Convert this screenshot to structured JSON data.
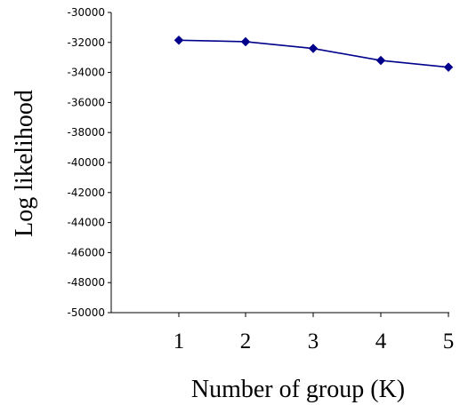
{
  "chart_data": {
    "type": "line",
    "title": "",
    "xlabel": "Number of group (K)",
    "ylabel": "Log likelihood",
    "x": [
      1,
      2,
      3,
      4,
      5
    ],
    "series": [
      {
        "values": [
          -31850,
          -31950,
          -32400,
          -33200,
          -33650
        ],
        "color": "#00008b"
      }
    ],
    "ylim": [
      -50000,
      -30000
    ],
    "yticks": [
      "-30000",
      "-32000",
      "-34000",
      "-36000",
      "-38000",
      "-40000",
      "-42000",
      "-44000",
      "-46000",
      "-48000",
      "-50000"
    ],
    "xticks": [
      "1",
      "2",
      "3",
      "4",
      "5"
    ],
    "grid": false,
    "legend": "none",
    "marker": "diamond"
  }
}
